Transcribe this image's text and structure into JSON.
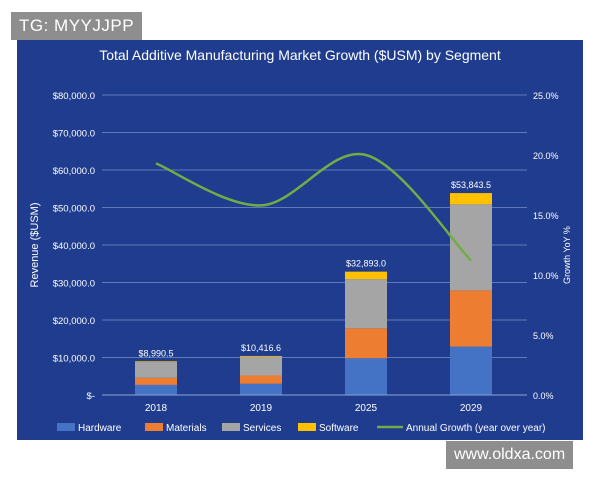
{
  "watermarks": {
    "top_left": "TG: MYYJJPP",
    "bottom_right": "www.oldxa.com"
  },
  "colors": {
    "panel_bg": "#1f3c8f",
    "hardware": "#4472c4",
    "materials": "#ed7d31",
    "services": "#a5a5a5",
    "software": "#ffc000",
    "growth_line": "#70ad47",
    "text": "#ffffff",
    "gridline": "#8ea3d6"
  },
  "chart_data": {
    "type": "bar",
    "stacked": true,
    "title": "Total Additive Manufacturing Market Growth ($USM) by Segment",
    "ylabel": "Revenue ($USM)",
    "y2label": "Growth YoY %",
    "categories": [
      "2018",
      "2019",
      "2025",
      "2029"
    ],
    "ylim": [
      0,
      80000
    ],
    "y_ticks": [
      0,
      10000,
      20000,
      30000,
      40000,
      50000,
      60000,
      70000,
      80000
    ],
    "y_tick_labels": [
      "$-",
      "$10,000.0",
      "$20,000.0",
      "$30,000.0",
      "$40,000.0",
      "$50,000.0",
      "$60,000.0",
      "$70,000.0",
      "$80,000.0"
    ],
    "y2lim": [
      0,
      25
    ],
    "y2_ticks": [
      0,
      5,
      10,
      15,
      20,
      25
    ],
    "y2_tick_labels": [
      "0.0%",
      "5.0%",
      "10.0%",
      "15.0%",
      "20.0%",
      "25.0%"
    ],
    "grid": true,
    "legend_position": "bottom",
    "series": [
      {
        "name": "Hardware",
        "color_key": "hardware",
        "values": [
          2700,
          3000,
          9800,
          12900
        ]
      },
      {
        "name": "Materials",
        "color_key": "materials",
        "values": [
          1900,
          2200,
          8000,
          15000
        ]
      },
      {
        "name": "Services",
        "color_key": "services",
        "values": [
          4190,
          5016,
          13093,
          22943
        ]
      },
      {
        "name": "Software",
        "color_key": "software",
        "values": [
          200,
          200,
          2000,
          3000
        ]
      }
    ],
    "totals": [
      8990.5,
      10416.6,
      32893.0,
      53843.5
    ],
    "total_labels": [
      "$8,990.5",
      "$10,416.6",
      "$32,893.0",
      "$53,843.5"
    ],
    "line_series": {
      "name": "Annual Growth (year over year)",
      "axis": "secondary",
      "color_key": "growth_line",
      "values": [
        19.3,
        15.8,
        20.0,
        11.2
      ]
    }
  }
}
